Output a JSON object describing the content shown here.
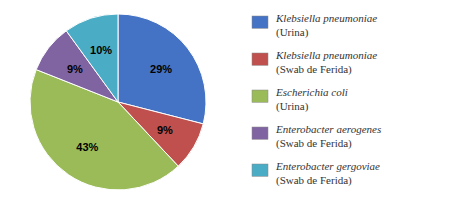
{
  "chart_data": {
    "type": "pie",
    "categories": [
      [
        "Klebsiella pneumoniae",
        "(Urina)"
      ],
      [
        "Klebsiella pneumoniae",
        "(Swab de Ferida)"
      ],
      [
        "Escherichia coli",
        "(Urina)"
      ],
      [
        "Enterobacter aerogenes",
        "(Swab de Ferida)"
      ],
      [
        "Enterobacter gergoviae",
        "(Swab de Ferida)"
      ]
    ],
    "values": [
      29,
      9,
      43,
      9,
      10
    ],
    "value_labels": [
      "29%",
      "9%",
      "43%",
      "9%",
      "10%"
    ],
    "data_labels": true,
    "colors": [
      "#4472C4",
      "#C0504D",
      "#9BBB59",
      "#8064A2",
      "#4BACC6"
    ]
  }
}
